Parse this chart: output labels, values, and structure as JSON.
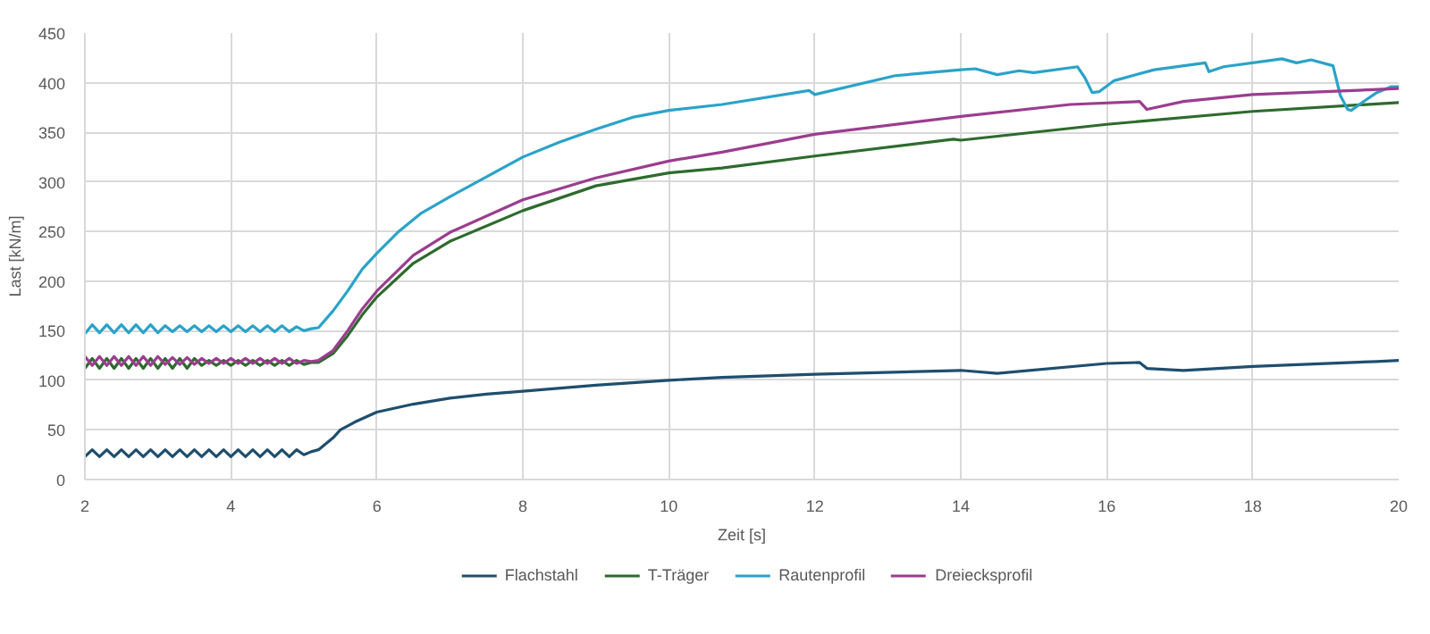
{
  "chart_data": {
    "type": "line",
    "xlabel": "Zeit [s]",
    "ylabel": "Last [kN/m]",
    "xlim": [
      2,
      20
    ],
    "xticks": [
      2,
      4,
      6,
      8,
      10,
      12,
      14,
      16,
      18,
      20
    ],
    "ylim": [
      0,
      450
    ],
    "yticks": [
      0,
      50,
      100,
      150,
      200,
      250,
      300,
      350,
      400,
      450
    ],
    "grid": true,
    "legend": "bottom",
    "marker": "none",
    "line_style": "solid",
    "series": [
      {
        "name": "Flachstahl",
        "color": "#1f4e6e",
        "x": [
          2.0,
          2.1,
          2.2,
          2.3,
          2.4,
          2.5,
          2.6,
          2.7,
          2.8,
          2.9,
          3.0,
          3.1,
          3.2,
          3.3,
          3.4,
          3.5,
          3.6,
          3.7,
          3.8,
          3.9,
          4.0,
          4.1,
          4.2,
          4.3,
          4.4,
          4.5,
          4.6,
          4.7,
          4.8,
          4.9,
          5.0,
          5.1,
          5.2,
          5.4,
          5.5,
          5.7,
          6.0,
          6.5,
          7.0,
          7.5,
          8.0,
          9.0,
          10.0,
          10.73,
          12.0,
          14.0,
          14.5,
          16.0,
          16.45,
          16.55,
          17.05,
          18.0,
          19.7,
          20.0
        ],
        "values": [
          23,
          30,
          23,
          30,
          23,
          30,
          23,
          30,
          23,
          30,
          23,
          30,
          23,
          30,
          23,
          30,
          23,
          30,
          23,
          30,
          23,
          30,
          23,
          30,
          23,
          30,
          23,
          30,
          23,
          30,
          25,
          28,
          30,
          42,
          50,
          58,
          68,
          76,
          82,
          86,
          89,
          95,
          100,
          103,
          106,
          110,
          107,
          117,
          118,
          112,
          110,
          114,
          119,
          120
        ]
      },
      {
        "name": "T-Träger",
        "color": "#2e6b2e",
        "x": [
          2.0,
          2.1,
          2.2,
          2.3,
          2.4,
          2.5,
          2.6,
          2.7,
          2.8,
          2.9,
          3.0,
          3.1,
          3.2,
          3.3,
          3.4,
          3.5,
          3.6,
          3.7,
          3.8,
          3.9,
          4.0,
          4.1,
          4.2,
          4.3,
          4.4,
          4.5,
          4.6,
          4.7,
          4.8,
          4.9,
          5.0,
          5.1,
          5.2,
          5.4,
          5.6,
          5.8,
          6.0,
          6.5,
          7.0,
          8.0,
          9.0,
          10.0,
          10.73,
          12.0,
          13.9,
          14.0,
          16.0,
          18.0,
          20.0
        ],
        "values": [
          112,
          122,
          112,
          122,
          112,
          122,
          112,
          122,
          112,
          122,
          112,
          122,
          112,
          122,
          112,
          122,
          115,
          120,
          115,
          120,
          115,
          120,
          115,
          120,
          115,
          120,
          115,
          120,
          115,
          120,
          116,
          118,
          118,
          127,
          145,
          166,
          184,
          218,
          240,
          271,
          296,
          309,
          314,
          326,
          343,
          342,
          358,
          371,
          380
        ]
      },
      {
        "name": "Rautenprofil",
        "color": "#2aa3c9",
        "x": [
          2.0,
          2.1,
          2.2,
          2.3,
          2.4,
          2.5,
          2.6,
          2.7,
          2.8,
          2.9,
          3.0,
          3.1,
          3.2,
          3.3,
          3.4,
          3.5,
          3.6,
          3.7,
          3.8,
          3.9,
          4.0,
          4.1,
          4.2,
          4.3,
          4.4,
          4.5,
          4.6,
          4.7,
          4.8,
          4.9,
          5.0,
          5.1,
          5.2,
          5.4,
          5.6,
          5.8,
          6.0,
          6.3,
          6.6,
          7.0,
          7.5,
          8.0,
          8.5,
          9.0,
          9.5,
          10.0,
          10.73,
          11.92,
          12.0,
          13.1,
          14.0,
          14.2,
          14.5,
          14.8,
          15.0,
          15.6,
          15.7,
          15.8,
          15.9,
          16.1,
          16.65,
          17.35,
          17.4,
          17.6,
          18.2,
          18.4,
          18.6,
          18.8,
          19.1,
          19.2,
          19.3,
          19.35,
          19.5,
          19.7,
          19.9,
          20.0
        ],
        "values": [
          147,
          156,
          148,
          156,
          148,
          156,
          148,
          156,
          148,
          156,
          148,
          155,
          149,
          155,
          149,
          155,
          149,
          155,
          149,
          155,
          149,
          155,
          149,
          155,
          149,
          155,
          149,
          155,
          149,
          154,
          150,
          152,
          153,
          170,
          190,
          212,
          228,
          250,
          268,
          285,
          305,
          325,
          340,
          353,
          365,
          372,
          378,
          392,
          388,
          407,
          413,
          414,
          408,
          412,
          410,
          416,
          405,
          390,
          391,
          402,
          413,
          420,
          411,
          416,
          422,
          424,
          420,
          423,
          417,
          387,
          373,
          372,
          380,
          390,
          396,
          396
        ]
      },
      {
        "name": "Dreiecksprofil",
        "color": "#9b3d8f",
        "x": [
          2.0,
          2.1,
          2.2,
          2.3,
          2.4,
          2.5,
          2.6,
          2.7,
          2.8,
          2.9,
          3.0,
          3.1,
          3.2,
          3.3,
          3.4,
          3.5,
          3.6,
          3.7,
          3.8,
          3.9,
          4.0,
          4.1,
          4.2,
          4.3,
          4.4,
          4.5,
          4.6,
          4.7,
          4.8,
          4.9,
          5.0,
          5.1,
          5.2,
          5.4,
          5.6,
          5.8,
          6.0,
          6.5,
          7.0,
          8.0,
          9.0,
          10.0,
          10.73,
          12.0,
          14.0,
          15.5,
          16.45,
          16.55,
          17.05,
          18.0,
          20.0
        ],
        "values": [
          124,
          115,
          124,
          115,
          124,
          115,
          124,
          115,
          124,
          115,
          124,
          116,
          123,
          116,
          123,
          116,
          122,
          117,
          122,
          117,
          122,
          117,
          122,
          117,
          122,
          117,
          122,
          117,
          122,
          117,
          120,
          119,
          120,
          130,
          150,
          172,
          190,
          226,
          249,
          282,
          304,
          321,
          330,
          348,
          366,
          378,
          381,
          373,
          381,
          388,
          394
        ]
      }
    ]
  }
}
